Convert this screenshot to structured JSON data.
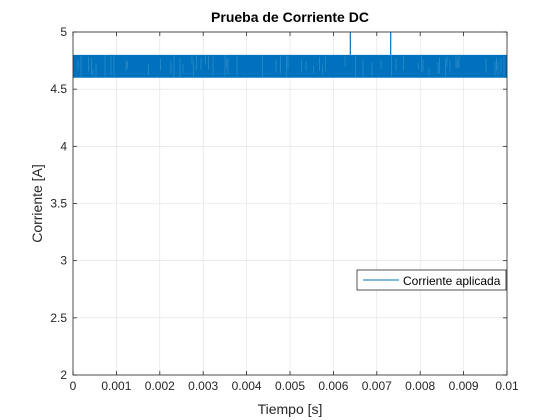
{
  "chart_data": {
    "type": "line",
    "title": "Prueba de Corriente DC",
    "xlabel": "Tiempo [s]",
    "ylabel": "Corriente [A]",
    "xlim": [
      0,
      0.01
    ],
    "ylim": [
      2,
      5
    ],
    "x_ticks": [
      0,
      0.001,
      0.002,
      0.003,
      0.004,
      0.005,
      0.006,
      0.007,
      0.008,
      0.009,
      0.01
    ],
    "x_tick_labels": [
      "0",
      "0.001",
      "0.002",
      "0.003",
      "0.004",
      "0.005",
      "0.006",
      "0.007",
      "0.008",
      "0.009",
      "0.01"
    ],
    "y_ticks": [
      2,
      2.5,
      3,
      3.5,
      4,
      4.5,
      5
    ],
    "y_tick_labels": [
      "2",
      "2.5",
      "3",
      "3.5",
      "4",
      "4.5",
      "5"
    ],
    "grid": true,
    "legend_position": "right",
    "series": [
      {
        "name": "Corriente aplicada",
        "color": "#0072BD",
        "band_low": 4.6,
        "band_high": 4.8,
        "band_x_range": [
          0,
          0.01
        ],
        "spikes": [
          {
            "x": 0.00639,
            "y": 5.0
          },
          {
            "x": 0.00732,
            "y": 5.0
          }
        ]
      }
    ]
  }
}
